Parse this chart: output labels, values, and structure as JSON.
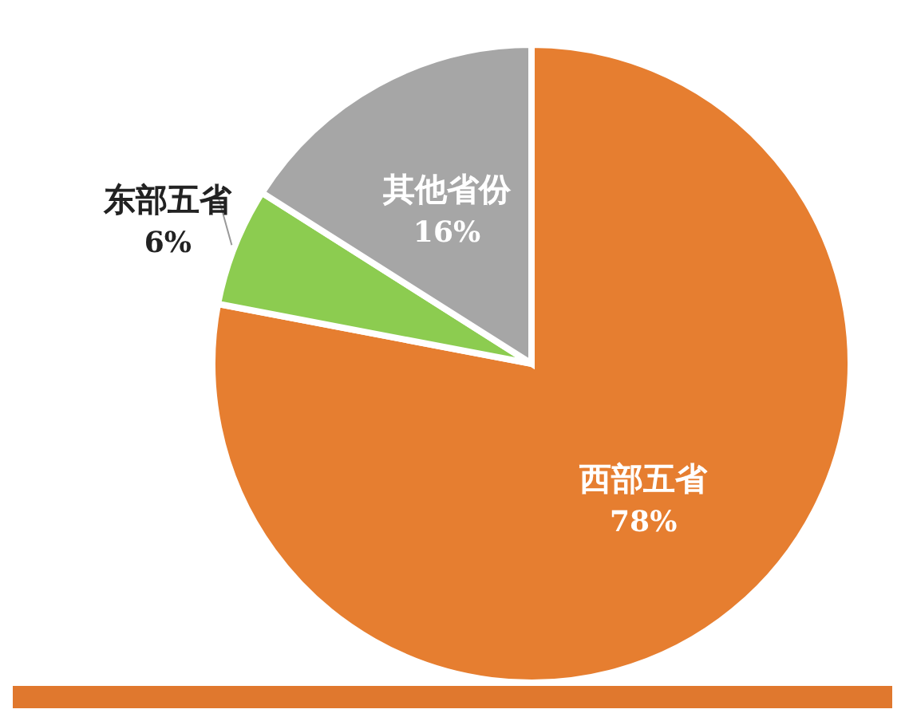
{
  "chart_data": {
    "type": "pie",
    "categories": [
      "西部五省",
      "东部五省",
      "其他省份"
    ],
    "values": [
      78,
      6,
      16
    ],
    "colors": [
      "#e67e30",
      "#8ccc50",
      "#a6a6a6"
    ],
    "value_labels": [
      "78%",
      "6%",
      "16%"
    ]
  }
}
